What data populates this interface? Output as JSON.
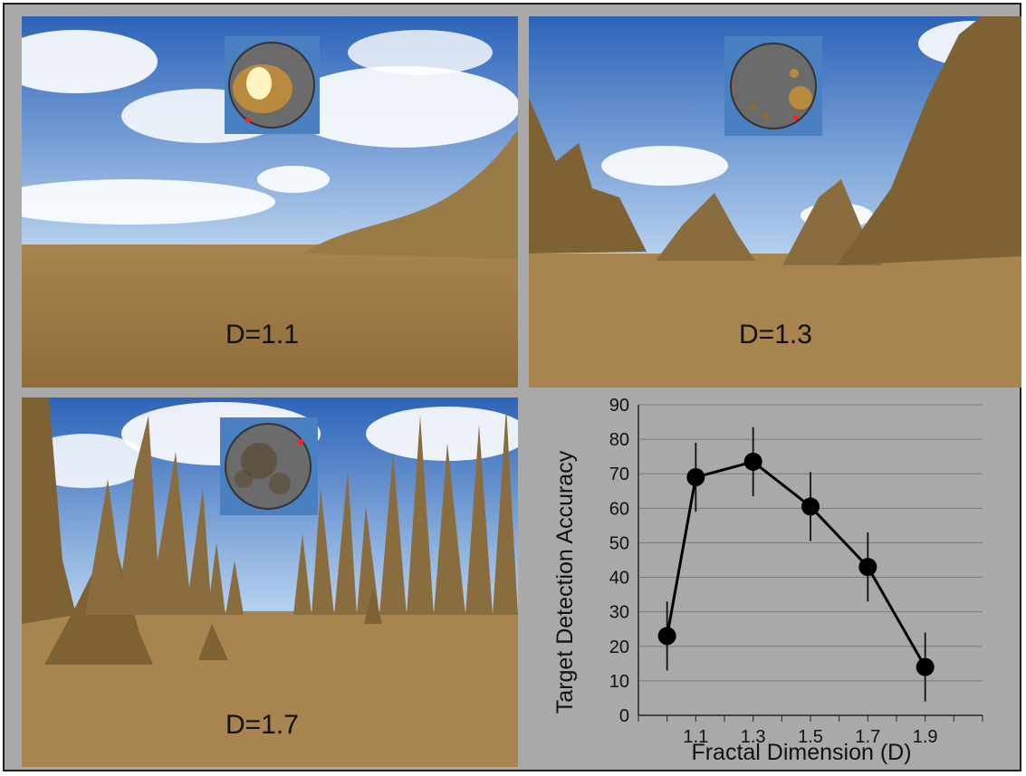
{
  "panels": [
    {
      "label": "D=1.1"
    },
    {
      "label": "D=1.3"
    },
    {
      "label": "D=1.7"
    }
  ],
  "colors": {
    "sky_top": "#2f6fc1",
    "sky_bottom": "#a9c8ea",
    "ground": "#b08a4f",
    "mountain": "#8a6d3e",
    "minimap_bg": "#4a7fc1",
    "minimap_disc": "#6b6b6b",
    "target_dot": "#ff2020",
    "chart_background": "#a9a9a9",
    "chart_line": "#000000"
  },
  "chart_data": {
    "type": "line",
    "xlabel": "Fractal Dimension (D)",
    "ylabel": "Target Detection Accuracy",
    "x_tick_labels": [
      "1.1",
      "1.3",
      "1.5",
      "1.7",
      "1.9"
    ],
    "y_tick_labels": [
      "0",
      "10",
      "20",
      "30",
      "40",
      "50",
      "60",
      "70",
      "80",
      "90"
    ],
    "xlim": [
      0.9,
      2.1
    ],
    "ylim": [
      0,
      90
    ],
    "grid": true,
    "series": [
      {
        "x": [
          1.0,
          1.1,
          1.3,
          1.5,
          1.7,
          1.9
        ],
        "values": [
          23,
          69,
          73.5,
          60.5,
          43,
          14
        ],
        "error": [
          10,
          10,
          10,
          10,
          10,
          10
        ]
      }
    ]
  }
}
